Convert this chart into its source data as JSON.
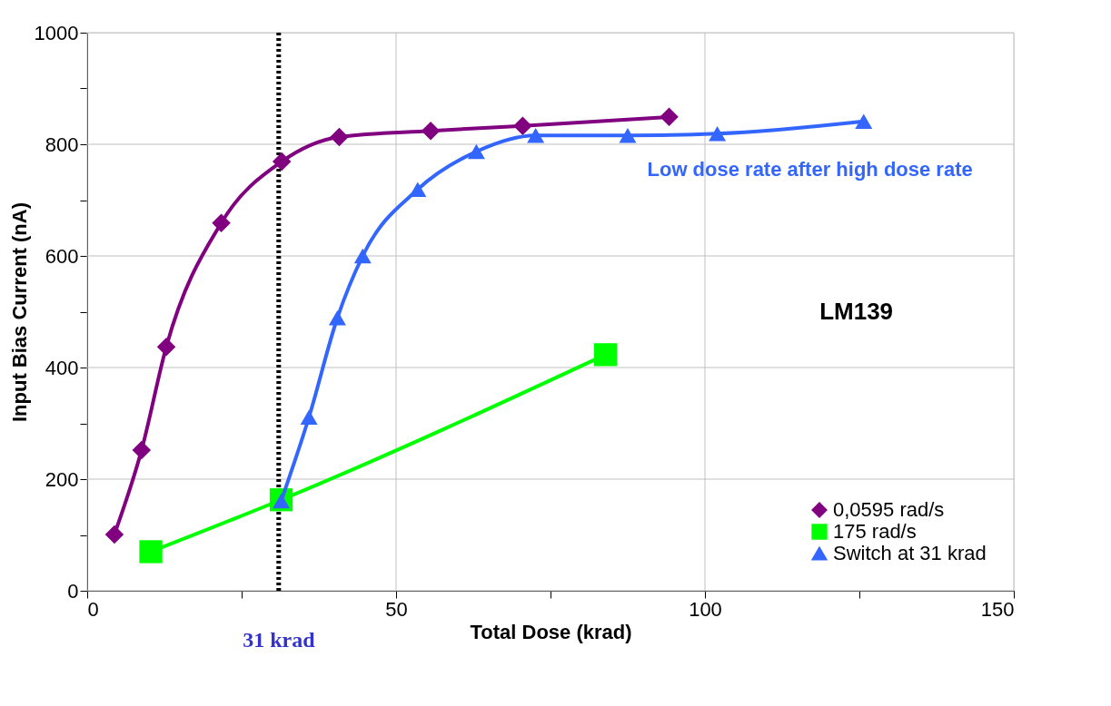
{
  "chart_data": {
    "type": "line",
    "xlabel": "Total Dose (krad)",
    "ylabel": "Input Bias Current (nA)",
    "xlim": [
      0,
      150
    ],
    "ylim": [
      0,
      1000
    ],
    "xticks": [
      0,
      {
        "value": 25,
        "label": null
      },
      50,
      {
        "value": 75,
        "label": null
      },
      100,
      {
        "value": 125,
        "label": null
      },
      150
    ],
    "yticks": [
      0,
      {
        "value": 100,
        "label": null
      },
      200,
      {
        "value": 300,
        "label": null
      },
      400,
      {
        "value": 500,
        "label": null
      },
      600,
      {
        "value": 700,
        "label": null
      },
      800,
      {
        "value": 900,
        "label": null
      },
      1000
    ],
    "grid": true,
    "legend": "bottom right",
    "series": [
      {
        "name": "0,0595 rad/s",
        "color": "#800080",
        "marker": "diamond",
        "x": [
          4.4,
          8.8,
          12.8,
          21.7,
          31.5,
          40.8,
          55.6,
          70.5,
          94.2
        ],
        "values": [
          101,
          252,
          437,
          659,
          769,
          813,
          824,
          833,
          849
        ]
      },
      {
        "name": "175 rad/s",
        "color": "#00ff00",
        "marker": "square",
        "x": [
          10.3,
          31.4,
          83.9
        ],
        "values": [
          70,
          163,
          423
        ]
      },
      {
        "name": "Switch at 31 krad",
        "color": "#3366ff",
        "marker": "triangle",
        "x": [
          31.4,
          35.9,
          40.5,
          44.6,
          53.5,
          63.0,
          72.6,
          87.5,
          102,
          125.7
        ],
        "values": [
          161,
          311,
          489,
          600,
          719,
          787,
          816,
          816,
          819,
          841
        ]
      }
    ],
    "ref_lines": [
      {
        "axis": "x",
        "value": 31,
        "label": "31 krad",
        "color": "#000000",
        "line_style": "dotted"
      }
    ],
    "annotations": [
      "LM139",
      "Low dose rate after high dose rate"
    ]
  }
}
